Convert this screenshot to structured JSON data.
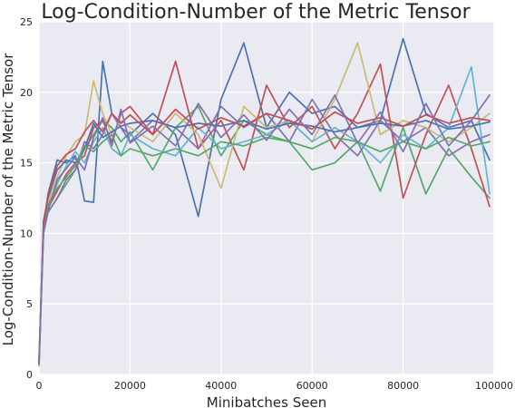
{
  "chart_data": {
    "type": "line",
    "title": "Log-Condition-Number of the Metric Tensor",
    "xlabel": "Minibatches Seen",
    "ylabel": "Log-Condition-Number of the Metric Tensor",
    "xlim": [
      0,
      100000
    ],
    "ylim": [
      0,
      25
    ],
    "xticks": [
      0,
      20000,
      40000,
      60000,
      80000,
      100000
    ],
    "xtick_labels": [
      "0",
      "20000",
      "40000",
      "60000",
      "80000",
      "100000"
    ],
    "yticks": [
      0,
      5,
      10,
      15,
      20,
      25
    ],
    "ytick_labels": [
      "0",
      "5",
      "10",
      "15",
      "20",
      "25"
    ],
    "grid": true,
    "background": "#eaeaf2",
    "palette": [
      "#4c72b0",
      "#55a868",
      "#c44e52",
      "#8172b2",
      "#ccb974",
      "#64b5cd"
    ],
    "x": [
      0,
      1000,
      2000,
      4000,
      6000,
      8000,
      10000,
      12000,
      14000,
      16000,
      18000,
      20000,
      25000,
      30000,
      35000,
      40000,
      45000,
      50000,
      55000,
      60000,
      65000,
      70000,
      75000,
      80000,
      85000,
      90000,
      95000,
      99000
    ],
    "series": [
      {
        "values": [
          0.8,
          10.5,
          12.8,
          15.2,
          15.0,
          15.5,
          12.3,
          12.2,
          22.2,
          18.5,
          17.5,
          17.0,
          18.5,
          17.0,
          11.2,
          19.5,
          23.5,
          17.5,
          20.0,
          18.5,
          19.0,
          17.5,
          18.0,
          23.8,
          18.5,
          17.5,
          18.0,
          15.2
        ]
      },
      {
        "values": [
          0.9,
          10.8,
          11.5,
          12.5,
          13.5,
          14.5,
          16.0,
          17.0,
          18.0,
          17.5,
          16.5,
          17.2,
          14.5,
          17.5,
          19.0,
          15.5,
          18.0,
          17.0,
          16.5,
          14.5,
          15.0,
          16.5,
          13.0,
          17.5,
          12.8,
          16.0,
          14.0,
          12.5
        ]
      },
      {
        "values": [
          0.7,
          10.2,
          11.8,
          13.0,
          14.2,
          15.0,
          15.5,
          17.5,
          18.0,
          16.5,
          18.5,
          19.0,
          17.0,
          22.2,
          16.0,
          18.0,
          14.5,
          20.5,
          17.5,
          19.0,
          16.0,
          18.5,
          22.0,
          12.5,
          17.0,
          20.5,
          16.0,
          11.9
        ]
      },
      {
        "values": [
          0.8,
          10.0,
          11.5,
          12.5,
          13.8,
          14.5,
          16.5,
          16.0,
          17.0,
          18.5,
          17.5,
          16.5,
          18.0,
          17.5,
          16.0,
          19.0,
          17.5,
          18.5,
          16.5,
          19.5,
          17.0,
          15.5,
          18.0,
          16.5,
          17.5,
          15.5,
          16.5,
          17.0
        ]
      },
      {
        "values": [
          0.6,
          10.4,
          12.2,
          14.0,
          15.5,
          16.5,
          17.0,
          20.8,
          18.5,
          17.0,
          18.0,
          17.5,
          16.5,
          18.5,
          17.0,
          13.2,
          19.0,
          17.5,
          18.0,
          16.5,
          19.5,
          23.5,
          17.0,
          18.0,
          17.5,
          16.5,
          17.5,
          18.5
        ]
      },
      {
        "values": [
          0.9,
          10.6,
          11.9,
          13.5,
          14.8,
          15.8,
          15.0,
          16.5,
          17.5,
          16.0,
          15.5,
          17.0,
          16.0,
          15.5,
          17.5,
          16.0,
          16.5,
          17.0,
          18.0,
          16.5,
          17.5,
          16.5,
          15.0,
          17.0,
          16.0,
          17.5,
          21.8,
          12.8
        ]
      },
      {
        "values": [
          0.8,
          10.9,
          12.5,
          14.5,
          15.2,
          15.0,
          16.0,
          17.8,
          16.8,
          17.2,
          17.6,
          17.8,
          18.0,
          17.5,
          17.8,
          17.6,
          18.0,
          17.4,
          17.8,
          17.6,
          17.2,
          17.5,
          17.8,
          17.6,
          18.0,
          17.4,
          17.6,
          17.9
        ]
      },
      {
        "values": [
          0.7,
          10.3,
          12.0,
          13.2,
          14.0,
          14.8,
          16.2,
          15.8,
          16.5,
          17.0,
          15.5,
          16.0,
          15.5,
          16.0,
          15.5,
          16.5,
          16.2,
          16.8,
          16.5,
          16.0,
          16.8,
          16.5,
          15.8,
          16.5,
          16.0,
          16.8,
          16.2,
          16.5
        ]
      },
      {
        "values": [
          0.8,
          10.7,
          12.6,
          14.8,
          15.6,
          16.0,
          17.2,
          18.0,
          17.2,
          18.5,
          17.8,
          18.4,
          17.0,
          18.8,
          17.4,
          18.2,
          17.6,
          18.5,
          18.0,
          17.4,
          18.6,
          17.8,
          18.2,
          17.6,
          18.4,
          17.8,
          18.2,
          18.0
        ]
      },
      {
        "values": [
          0.9,
          10.1,
          11.6,
          13.8,
          14.6,
          15.4,
          14.5,
          16.8,
          18.2,
          16.2,
          18.8,
          16.4,
          17.6,
          16.2,
          19.2,
          16.8,
          18.4,
          16.6,
          18.8,
          17.0,
          19.8,
          16.4,
          18.6,
          15.8,
          19.2,
          16.2,
          18.0,
          19.8
        ]
      }
    ]
  }
}
